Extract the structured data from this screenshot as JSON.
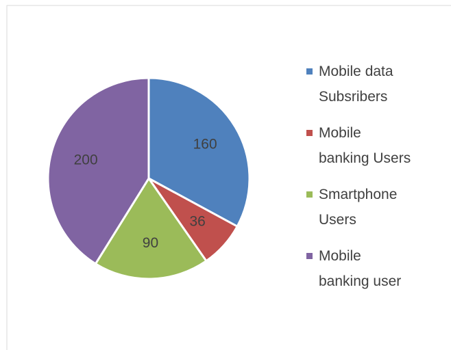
{
  "chart_data": {
    "type": "pie",
    "categories": [
      "Mobile data Subsribers",
      "Mobile banking Users",
      "Smartphone Users",
      "Mobile banking user"
    ],
    "values": [
      160,
      36,
      90,
      200
    ],
    "colors": [
      "#4f81bd",
      "#c0504d",
      "#9bbb59",
      "#8064a2"
    ],
    "legend": "right"
  }
}
